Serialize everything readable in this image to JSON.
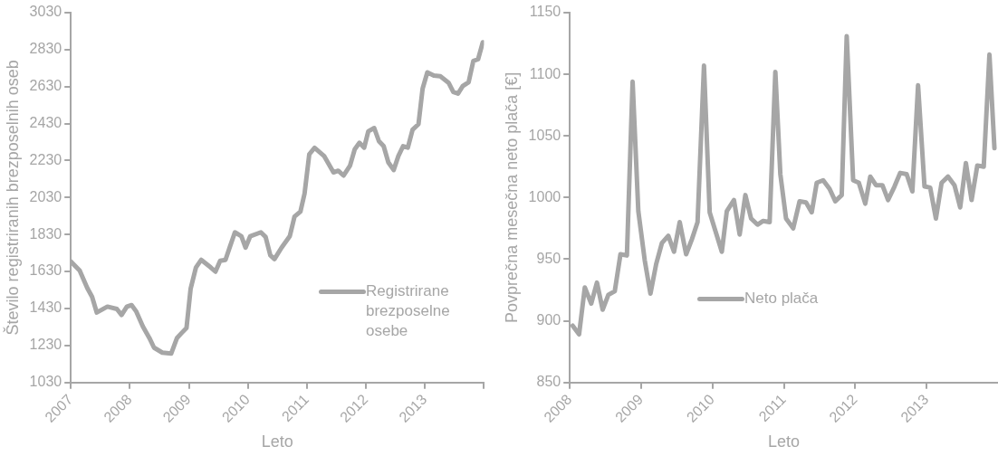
{
  "chart_data": [
    {
      "type": "line",
      "xlabel": "Leto",
      "ylabel": "Število registriranih brezposelnih oseb",
      "legend": "bottom right",
      "marker": "none",
      "line_style": "solid",
      "xlim": [
        2007,
        2014
      ],
      "xticks": [
        2007,
        2008,
        2009,
        2010,
        2011,
        2012,
        2013,
        {
          "value": 2014,
          "label": null
        }
      ],
      "ylim": [
        1030,
        3030
      ],
      "yticks": [
        1030,
        1230,
        1430,
        1630,
        1830,
        2030,
        2230,
        2430,
        2630,
        2830,
        3030
      ],
      "series": [
        {
          "name": "Registrirane brezposelne osebe",
          "color": "#a6a6a6",
          "x": [
            2007.0,
            2007.15,
            2007.28,
            2007.36,
            2007.44,
            2007.62,
            2007.78,
            2007.86,
            2007.95,
            2008.03,
            2008.11,
            2008.22,
            2008.33,
            2008.41,
            2008.55,
            2008.7,
            2008.8,
            2008.88,
            2008.96,
            2009.03,
            2009.12,
            2009.21,
            2009.37,
            2009.45,
            2009.53,
            2009.62,
            2009.7,
            2009.78,
            2009.89,
            2009.96,
            2010.04,
            2010.22,
            2010.3,
            2010.38,
            2010.45,
            2010.57,
            2010.71,
            2010.79,
            2010.89,
            2010.96,
            2011.04,
            2011.13,
            2011.29,
            2011.45,
            2011.53,
            2011.62,
            2011.73,
            2011.81,
            2011.89,
            2011.97,
            2012.04,
            2012.14,
            2012.22,
            2012.3,
            2012.38,
            2012.47,
            2012.55,
            2012.63,
            2012.71,
            2012.79,
            2012.89,
            2012.96,
            2013.04,
            2013.15,
            2013.26,
            2013.4,
            2013.48,
            2013.56,
            2013.64,
            2013.74,
            2013.82,
            2013.9,
            2013.98
          ],
          "values": [
            1684,
            1635,
            1540,
            1493,
            1408,
            1440,
            1427,
            1395,
            1440,
            1448,
            1413,
            1333,
            1271,
            1218,
            1191,
            1186,
            1271,
            1298,
            1324,
            1537,
            1652,
            1693,
            1652,
            1629,
            1688,
            1693,
            1768,
            1842,
            1821,
            1759,
            1821,
            1842,
            1817,
            1718,
            1697,
            1759,
            1821,
            1927,
            1954,
            2051,
            2264,
            2299,
            2255,
            2166,
            2175,
            2149,
            2202,
            2291,
            2326,
            2300,
            2388,
            2406,
            2335,
            2308,
            2220,
            2179,
            2255,
            2308,
            2300,
            2397,
            2427,
            2619,
            2707,
            2690,
            2686,
            2651,
            2601,
            2592,
            2633,
            2654,
            2769,
            2778,
            2870
          ]
        }
      ]
    },
    {
      "type": "line",
      "xlabel": "Leto",
      "ylabel": "Povprečna mesečna neto plača [€]",
      "legend": "bottom",
      "marker": "none",
      "line_style": "solid",
      "xlim": [
        2008,
        2014
      ],
      "xticks": [
        2008,
        2009,
        2010,
        2011,
        2012,
        2013
      ],
      "ylim": [
        850,
        1150
      ],
      "yticks": [
        850,
        900,
        950,
        1000,
        1050,
        1100,
        1150
      ],
      "series": [
        {
          "name": "Neto plača",
          "color": "#a6a6a6",
          "x": [
            2008.04,
            2008.13,
            2008.21,
            2008.3,
            2008.38,
            2008.46,
            2008.54,
            2008.63,
            2008.71,
            2008.8,
            2008.88,
            2008.96,
            2009.05,
            2009.13,
            2009.21,
            2009.29,
            2009.38,
            2009.46,
            2009.54,
            2009.63,
            2009.71,
            2009.79,
            2009.88,
            2009.96,
            2010.05,
            2010.13,
            2010.2,
            2010.3,
            2010.38,
            2010.46,
            2010.54,
            2010.63,
            2010.71,
            2010.8,
            2010.88,
            2010.95,
            2011.03,
            2011.13,
            2011.22,
            2011.31,
            2011.39,
            2011.46,
            2011.55,
            2011.64,
            2011.72,
            2011.81,
            2011.88,
            2011.97,
            2012.05,
            2012.14,
            2012.21,
            2012.29,
            2012.38,
            2012.46,
            2012.55,
            2012.63,
            2012.72,
            2012.8,
            2012.88,
            2012.97,
            2013.05,
            2013.13,
            2013.21,
            2013.3,
            2013.39,
            2013.47,
            2013.55,
            2013.63,
            2013.71,
            2013.8,
            2013.88,
            2013.95
          ],
          "values": [
            896,
            889,
            927,
            914,
            931,
            909,
            921,
            924,
            954,
            953,
            1094,
            989,
            949,
            922,
            946,
            963,
            969,
            956,
            980,
            954,
            966,
            980,
            1107,
            988,
            971,
            956,
            989,
            998,
            970,
            1002,
            983,
            978,
            981,
            980,
            1102,
            1019,
            983,
            975,
            997,
            996,
            988,
            1012,
            1014,
            1007,
            997,
            1002,
            1131,
            1014,
            1012,
            995,
            1017,
            1010,
            1010,
            998,
            1009,
            1020,
            1019,
            1005,
            1091,
            1009,
            1008,
            983,
            1012,
            1017,
            1010,
            992,
            1028,
            998,
            1026,
            1025,
            1116,
            1040
          ]
        }
      ]
    }
  ]
}
